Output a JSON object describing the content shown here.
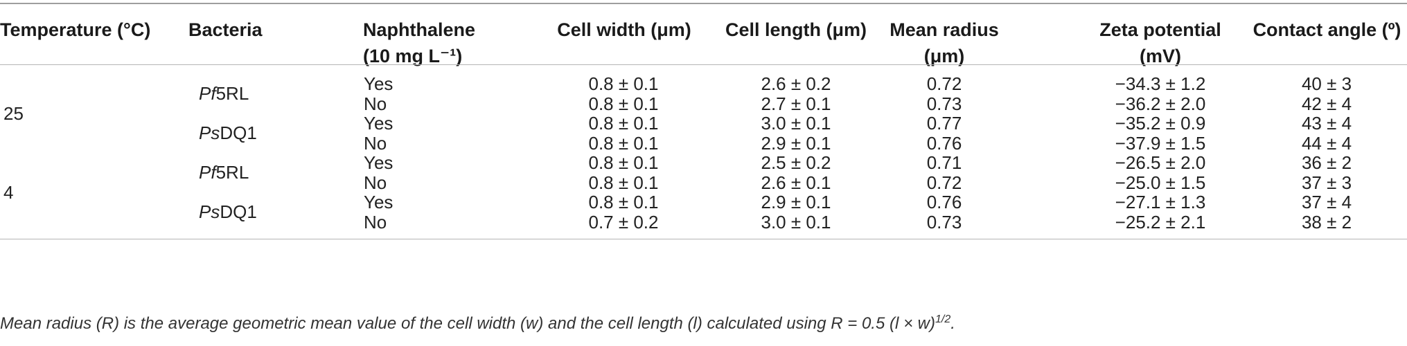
{
  "headers": {
    "temperature": "Temperature (°C)",
    "bacteria": "Bacteria",
    "naphthalene_line1": "Naphthalene",
    "naphthalene_line2": "(10 mg L⁻¹)",
    "cell_width": "Cell width (μm)",
    "cell_length": "Cell length (μm)",
    "mean_radius_line1": "Mean radius",
    "mean_radius_line2": "(μm)",
    "zeta_line1": "Zeta potential",
    "zeta_line2": "(mV)",
    "contact_angle": "Contact angle (º)"
  },
  "temperatures": [
    "25",
    "4"
  ],
  "bacteria": [
    {
      "prefix": "Pf",
      "suffix": "5RL"
    },
    {
      "prefix": "Ps",
      "suffix": "DQ1"
    },
    {
      "prefix": "Pf",
      "suffix": "5RL"
    },
    {
      "prefix": "Ps",
      "suffix": "DQ1"
    }
  ],
  "rows": [
    {
      "naphthalene": "Yes",
      "cell_width": "0.8 ± 0.1",
      "cell_length": "2.6 ± 0.2",
      "mean_radius": "0.72",
      "zeta": "−34.3 ± 1.2",
      "contact_angle": "40 ± 3"
    },
    {
      "naphthalene": "No",
      "cell_width": "0.8 ± 0.1",
      "cell_length": "2.7 ± 0.1",
      "mean_radius": "0.73",
      "zeta": "−36.2 ± 2.0",
      "contact_angle": "42 ± 4"
    },
    {
      "naphthalene": "Yes",
      "cell_width": "0.8 ± 0.1",
      "cell_length": "3.0 ± 0.1",
      "mean_radius": "0.77",
      "zeta": "−35.2 ± 0.9",
      "contact_angle": "43 ± 4"
    },
    {
      "naphthalene": "No",
      "cell_width": "0.8 ± 0.1",
      "cell_length": "2.9 ± 0.1",
      "mean_radius": "0.76",
      "zeta": "−37.9 ± 1.5",
      "contact_angle": "44 ± 4"
    },
    {
      "naphthalene": "Yes",
      "cell_width": "0.8 ± 0.1",
      "cell_length": "2.5 ± 0.2",
      "mean_radius": "0.71",
      "zeta": "−26.5 ± 2.0",
      "contact_angle": "36 ± 2"
    },
    {
      "naphthalene": "No",
      "cell_width": "0.8 ± 0.1",
      "cell_length": "2.6 ± 0.1",
      "mean_radius": "0.72",
      "zeta": "−25.0 ± 1.5",
      "contact_angle": "37 ± 3"
    },
    {
      "naphthalene": "Yes",
      "cell_width": "0.8 ± 0.1",
      "cell_length": "2.9 ± 0.1",
      "mean_radius": "0.76",
      "zeta": "−27.1 ± 1.3",
      "contact_angle": "37 ± 4"
    },
    {
      "naphthalene": "No",
      "cell_width": "0.7 ± 0.2",
      "cell_length": "3.0 ± 0.1",
      "mean_radius": "0.73",
      "zeta": "−25.2 ± 2.1",
      "contact_angle": "38 ± 2"
    }
  ],
  "footnote": {
    "text": "Mean radius (R) is the average geometric mean value of the cell width (w) and the cell length (l) calculated using R = 0.5 (l × w)",
    "superscript": "1/2",
    "end": "."
  }
}
